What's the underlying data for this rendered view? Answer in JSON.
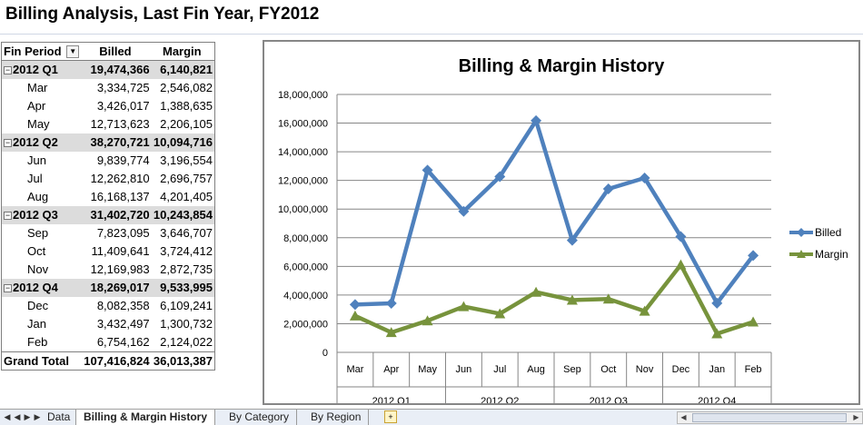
{
  "report_title": "Billing Analysis, Last Fin Year, FY2012",
  "pivot": {
    "headers": {
      "period": "Fin Period",
      "billed": "Billed",
      "margin": "Margin"
    },
    "rows": [
      {
        "type": "group",
        "label": "2012 Q1",
        "billed": "19,474,366",
        "margin": "6,140,821"
      },
      {
        "type": "month",
        "label": "Mar",
        "billed": "3,334,725",
        "margin": "2,546,082"
      },
      {
        "type": "month",
        "label": "Apr",
        "billed": "3,426,017",
        "margin": "1,388,635"
      },
      {
        "type": "month",
        "label": "May",
        "billed": "12,713,623",
        "margin": "2,206,105"
      },
      {
        "type": "group",
        "label": "2012 Q2",
        "billed": "38,270,721",
        "margin": "10,094,716"
      },
      {
        "type": "month",
        "label": "Jun",
        "billed": "9,839,774",
        "margin": "3,196,554"
      },
      {
        "type": "month",
        "label": "Jul",
        "billed": "12,262,810",
        "margin": "2,696,757"
      },
      {
        "type": "month",
        "label": "Aug",
        "billed": "16,168,137",
        "margin": "4,201,405"
      },
      {
        "type": "group",
        "label": "2012 Q3",
        "billed": "31,402,720",
        "margin": "10,243,854"
      },
      {
        "type": "month",
        "label": "Sep",
        "billed": "7,823,095",
        "margin": "3,646,707"
      },
      {
        "type": "month",
        "label": "Oct",
        "billed": "11,409,641",
        "margin": "3,724,412"
      },
      {
        "type": "month",
        "label": "Nov",
        "billed": "12,169,983",
        "margin": "2,872,735"
      },
      {
        "type": "group",
        "label": "2012 Q4",
        "billed": "18,269,017",
        "margin": "9,533,995"
      },
      {
        "type": "month",
        "label": "Dec",
        "billed": "8,082,358",
        "margin": "6,109,241"
      },
      {
        "type": "month",
        "label": "Jan",
        "billed": "3,432,497",
        "margin": "1,300,732"
      },
      {
        "type": "month",
        "label": "Feb",
        "billed": "6,754,162",
        "margin": "2,124,022"
      }
    ],
    "total": {
      "label": "Grand Total",
      "billed": "107,416,824",
      "margin": "36,013,387"
    }
  },
  "chart_data": {
    "type": "line",
    "title": "Billing & Margin History",
    "categories": [
      "Mar",
      "Apr",
      "May",
      "Jun",
      "Jul",
      "Aug",
      "Sep",
      "Oct",
      "Nov",
      "Dec",
      "Jan",
      "Feb"
    ],
    "groups": [
      {
        "label": "2012 Q1",
        "span": 3
      },
      {
        "label": "2012 Q2",
        "span": 3
      },
      {
        "label": "2012 Q3",
        "span": 3
      },
      {
        "label": "2012 Q4",
        "span": 3
      }
    ],
    "series": [
      {
        "name": "Billed",
        "color": "#4f81bd",
        "values": [
          3334725,
          3426017,
          12713623,
          9839774,
          12262810,
          16168137,
          7823095,
          11409641,
          12169983,
          8082358,
          3432497,
          6754162
        ]
      },
      {
        "name": "Margin",
        "color": "#77933c",
        "values": [
          2546082,
          1388635,
          2206105,
          3196554,
          2696757,
          4201405,
          3646707,
          3724412,
          2872735,
          6109241,
          1300732,
          2124022
        ]
      }
    ],
    "ylim": [
      0,
      18000000
    ],
    "yticks": [
      "0",
      "2,000,000",
      "4,000,000",
      "6,000,000",
      "8,000,000",
      "10,000,000",
      "12,000,000",
      "14,000,000",
      "16,000,000",
      "18,000,000"
    ],
    "grid": true,
    "legend_position": "right"
  },
  "sheet_tabs": [
    "Data",
    "Billing & Margin History",
    "By Category",
    "By Region"
  ],
  "active_tab": "Billing & Margin History"
}
